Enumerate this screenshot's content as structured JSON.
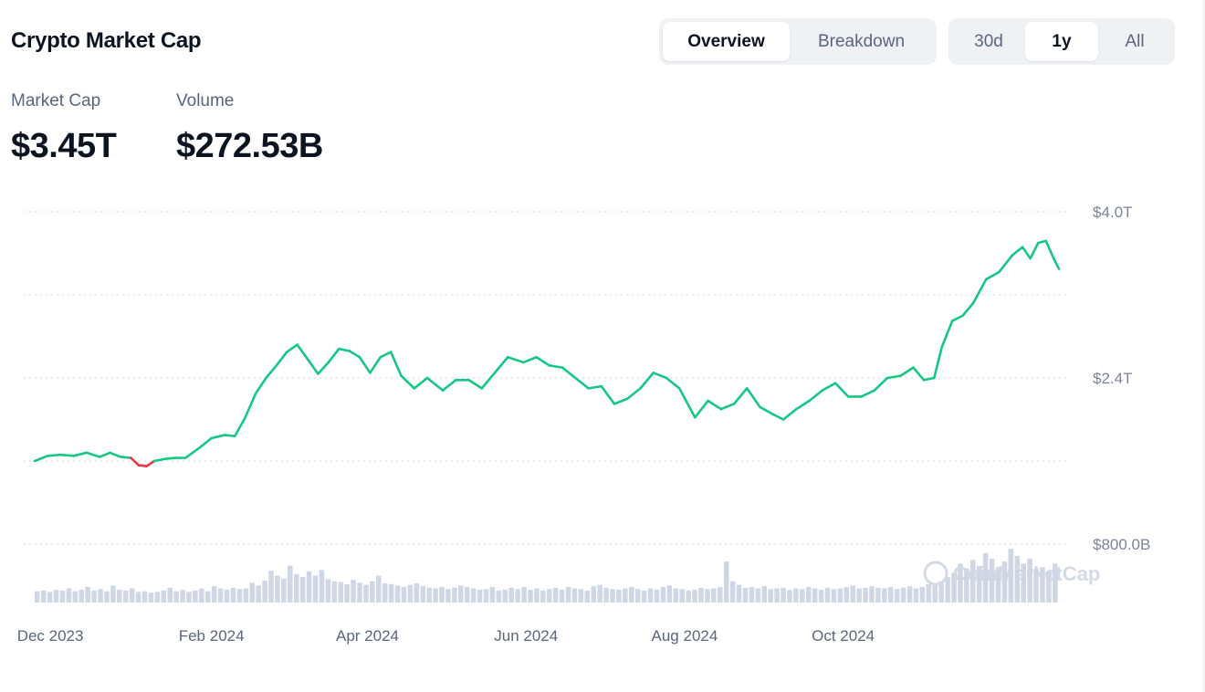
{
  "header": {
    "title": "Crypto Market Cap",
    "view_tabs": [
      {
        "label": "Overview",
        "active": true
      },
      {
        "label": "Breakdown",
        "active": false
      }
    ],
    "range_tabs": [
      {
        "label": "30d",
        "active": false
      },
      {
        "label": "1y",
        "active": true
      },
      {
        "label": "All",
        "active": false
      }
    ]
  },
  "stats": {
    "market_cap_label": "Market Cap",
    "market_cap_value": "$3.45T",
    "volume_label": "Volume",
    "volume_value": "$272.53B"
  },
  "watermark": "CoinMarketCap",
  "colors": {
    "up": "#16c784",
    "down": "#ea3943",
    "volume": "#cfd6e4",
    "grid": "#d5dae2"
  },
  "chart_data": {
    "type": "line",
    "title": "",
    "y_tick_labels": [
      "$4.0T",
      "$2.4T",
      "$800.0B"
    ],
    "y_ticks": [
      4.0,
      2.4,
      0.8
    ],
    "ylim": [
      0.8,
      4.0
    ],
    "grid": true,
    "x_tick_labels": [
      "Dec 2023",
      "Feb 2024",
      "Apr 2024",
      "Jun 2024",
      "Aug 2024",
      "Oct 2024"
    ],
    "x_tick_dates": [
      "2023-12-01",
      "2024-02-01",
      "2024-04-01",
      "2024-06-01",
      "2024-08-01",
      "2024-10-01"
    ],
    "baseline": 1.6,
    "series": [
      {
        "values_in": "USD trillions",
        "points": [
          [
            "2023-11-25",
            1.6
          ],
          [
            "2023-11-30",
            1.65
          ],
          [
            "2023-12-05",
            1.66
          ],
          [
            "2023-12-10",
            1.65
          ],
          [
            "2023-12-15",
            1.68
          ],
          [
            "2023-12-20",
            1.64
          ],
          [
            "2023-12-24",
            1.68
          ],
          [
            "2023-12-28",
            1.64
          ],
          [
            "2024-01-01",
            1.63
          ],
          [
            "2024-01-04",
            1.56
          ],
          [
            "2024-01-07",
            1.55
          ],
          [
            "2024-01-10",
            1.6
          ],
          [
            "2024-01-14",
            1.62
          ],
          [
            "2024-01-18",
            1.63
          ],
          [
            "2024-01-22",
            1.63
          ],
          [
            "2024-01-27",
            1.72
          ],
          [
            "2024-02-01",
            1.82
          ],
          [
            "2024-02-06",
            1.85
          ],
          [
            "2024-02-10",
            1.84
          ],
          [
            "2024-02-14",
            2.02
          ],
          [
            "2024-02-18",
            2.25
          ],
          [
            "2024-02-22",
            2.4
          ],
          [
            "2024-02-26",
            2.52
          ],
          [
            "2024-03-01",
            2.65
          ],
          [
            "2024-03-05",
            2.72
          ],
          [
            "2024-03-09",
            2.58
          ],
          [
            "2024-03-13",
            2.44
          ],
          [
            "2024-03-17",
            2.55
          ],
          [
            "2024-03-21",
            2.68
          ],
          [
            "2024-03-25",
            2.66
          ],
          [
            "2024-03-29",
            2.6
          ],
          [
            "2024-04-02",
            2.45
          ],
          [
            "2024-04-06",
            2.6
          ],
          [
            "2024-04-10",
            2.65
          ],
          [
            "2024-04-14",
            2.42
          ],
          [
            "2024-04-19",
            2.3
          ],
          [
            "2024-04-24",
            2.4
          ],
          [
            "2024-04-30",
            2.28
          ],
          [
            "2024-05-05",
            2.38
          ],
          [
            "2024-05-10",
            2.38
          ],
          [
            "2024-05-15",
            2.3
          ],
          [
            "2024-05-20",
            2.45
          ],
          [
            "2024-05-25",
            2.6
          ],
          [
            "2024-05-31",
            2.55
          ],
          [
            "2024-06-05",
            2.6
          ],
          [
            "2024-06-10",
            2.52
          ],
          [
            "2024-06-15",
            2.5
          ],
          [
            "2024-06-20",
            2.4
          ],
          [
            "2024-06-25",
            2.3
          ],
          [
            "2024-06-30",
            2.32
          ],
          [
            "2024-07-05",
            2.15
          ],
          [
            "2024-07-10",
            2.2
          ],
          [
            "2024-07-15",
            2.3
          ],
          [
            "2024-07-20",
            2.45
          ],
          [
            "2024-07-25",
            2.4
          ],
          [
            "2024-07-30",
            2.3
          ],
          [
            "2024-08-05",
            2.02
          ],
          [
            "2024-08-10",
            2.18
          ],
          [
            "2024-08-15",
            2.1
          ],
          [
            "2024-08-20",
            2.15
          ],
          [
            "2024-08-25",
            2.3
          ],
          [
            "2024-08-30",
            2.12
          ],
          [
            "2024-09-04",
            2.05
          ],
          [
            "2024-09-08",
            2.0
          ],
          [
            "2024-09-13",
            2.1
          ],
          [
            "2024-09-18",
            2.18
          ],
          [
            "2024-09-23",
            2.28
          ],
          [
            "2024-09-28",
            2.35
          ],
          [
            "2024-10-03",
            2.22
          ],
          [
            "2024-10-08",
            2.22
          ],
          [
            "2024-10-13",
            2.28
          ],
          [
            "2024-10-18",
            2.4
          ],
          [
            "2024-10-23",
            2.42
          ],
          [
            "2024-10-28",
            2.5
          ],
          [
            "2024-11-01",
            2.38
          ],
          [
            "2024-11-05",
            2.4
          ],
          [
            "2024-11-08",
            2.7
          ],
          [
            "2024-11-12",
            2.95
          ],
          [
            "2024-11-16",
            3.0
          ],
          [
            "2024-11-20",
            3.12
          ],
          [
            "2024-11-25",
            3.35
          ],
          [
            "2024-11-30",
            3.42
          ],
          [
            "2024-12-05",
            3.58
          ],
          [
            "2024-12-09",
            3.66
          ],
          [
            "2024-12-12",
            3.55
          ],
          [
            "2024-12-15",
            3.7
          ],
          [
            "2024-12-18",
            3.72
          ],
          [
            "2024-12-21",
            3.55
          ],
          [
            "2024-12-23",
            3.45
          ]
        ]
      }
    ],
    "volume": {
      "values_in": "relative",
      "dates_start": "2023-11-25",
      "dates_end": "2024-12-23",
      "values": [
        0.16,
        0.17,
        0.15,
        0.18,
        0.17,
        0.2,
        0.16,
        0.18,
        0.22,
        0.17,
        0.19,
        0.16,
        0.24,
        0.18,
        0.17,
        0.2,
        0.15,
        0.16,
        0.14,
        0.15,
        0.17,
        0.21,
        0.16,
        0.18,
        0.15,
        0.17,
        0.2,
        0.16,
        0.23,
        0.2,
        0.18,
        0.21,
        0.19,
        0.2,
        0.28,
        0.24,
        0.31,
        0.45,
        0.38,
        0.34,
        0.52,
        0.4,
        0.36,
        0.44,
        0.38,
        0.46,
        0.33,
        0.3,
        0.29,
        0.26,
        0.32,
        0.28,
        0.25,
        0.3,
        0.38,
        0.27,
        0.26,
        0.24,
        0.22,
        0.25,
        0.27,
        0.23,
        0.21,
        0.2,
        0.22,
        0.19,
        0.21,
        0.24,
        0.22,
        0.2,
        0.18,
        0.19,
        0.22,
        0.17,
        0.18,
        0.21,
        0.19,
        0.22,
        0.18,
        0.2,
        0.17,
        0.19,
        0.21,
        0.18,
        0.22,
        0.2,
        0.19,
        0.17,
        0.23,
        0.25,
        0.21,
        0.19,
        0.18,
        0.2,
        0.22,
        0.19,
        0.17,
        0.2,
        0.18,
        0.22,
        0.24,
        0.2,
        0.19,
        0.17,
        0.18,
        0.21,
        0.19,
        0.2,
        0.22,
        0.58,
        0.3,
        0.25,
        0.21,
        0.22,
        0.2,
        0.23,
        0.19,
        0.2,
        0.21,
        0.18,
        0.2,
        0.19,
        0.22,
        0.2,
        0.18,
        0.21,
        0.19,
        0.2,
        0.22,
        0.24,
        0.2,
        0.21,
        0.23,
        0.21,
        0.2,
        0.22,
        0.19,
        0.21,
        0.23,
        0.2,
        0.22,
        0.26,
        0.24,
        0.3,
        0.36,
        0.42,
        0.55,
        0.48,
        0.6,
        0.52,
        0.7,
        0.62,
        0.5,
        0.58,
        0.76,
        0.66,
        0.55,
        0.62,
        0.48,
        0.5,
        0.44,
        0.55
      ]
    }
  }
}
